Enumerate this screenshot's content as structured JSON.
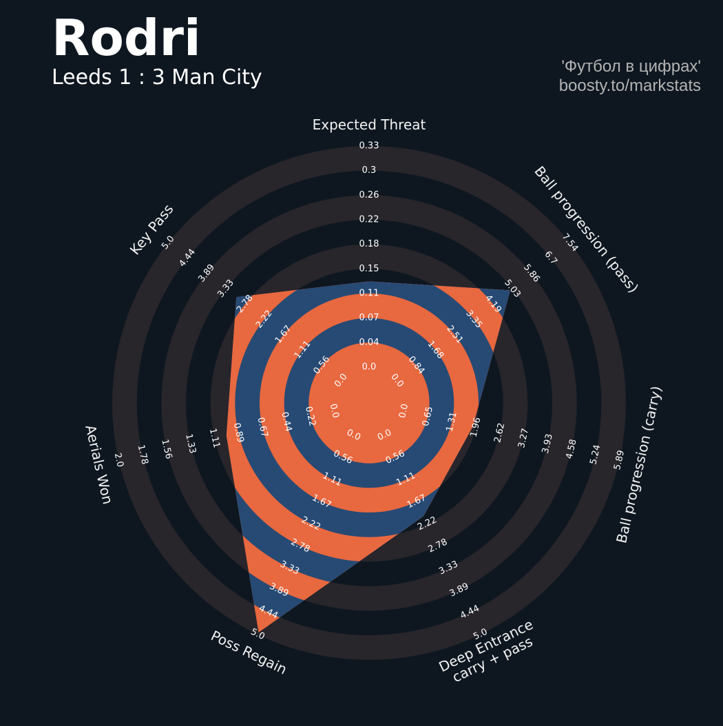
{
  "chart_data": {
    "type": "radar",
    "title": "Rodri",
    "subtitle": "Leeds 1 : 3 Man City",
    "credits": [
      "'Футбол в цифрах'",
      "boosty.to/markstats"
    ],
    "categories": [
      "Expected Threat",
      "Ball progression (pass)",
      "Ball progression (carry)",
      "Deep Entrance\ncarry + pass",
      "Poss Regain",
      "Aerials Won",
      "Key Pass"
    ],
    "values": [
      0.128,
      4.94,
      1.88,
      2.03,
      4.95,
      1.0,
      3.03
    ],
    "colors": {
      "ring": "#28252b",
      "background": "#0e1720",
      "ring_inside": "#e8683f",
      "background_inside": "#274a74"
    },
    "axes": [
      {
        "lim": [
          0,
          0.33
        ],
        "ticks": [
          {
            "value": 0,
            "label": "0.0"
          },
          {
            "value": 0.0367,
            "label": "0.04"
          },
          {
            "value": 0.0733,
            "label": "0.07"
          },
          {
            "value": 0.11,
            "label": "0.11"
          },
          {
            "value": 0.1467,
            "label": "0.15"
          },
          {
            "value": 0.1833,
            "label": "0.18"
          },
          {
            "value": 0.22,
            "label": "0.22"
          },
          {
            "value": 0.2567,
            "label": "0.26"
          },
          {
            "value": 0.2933,
            "label": "0.3"
          },
          {
            "value": 0.33,
            "label": "0.33"
          }
        ]
      },
      {
        "lim": [
          0,
          7.54
        ],
        "ticks": [
          {
            "value": 0,
            "label": "0.0"
          },
          {
            "value": 0.8378,
            "label": "0.84"
          },
          {
            "value": 1.6756,
            "label": "1.68"
          },
          {
            "value": 2.5133,
            "label": "2.51"
          },
          {
            "value": 3.3511,
            "label": "3.35"
          },
          {
            "value": 4.1889,
            "label": "4.19"
          },
          {
            "value": 5.0267,
            "label": "5.03"
          },
          {
            "value": 5.8644,
            "label": "5.86"
          },
          {
            "value": 6.7022,
            "label": "6.7"
          },
          {
            "value": 7.54,
            "label": "7.54"
          }
        ]
      },
      {
        "lim": [
          0,
          5.89
        ],
        "ticks": [
          {
            "value": 0,
            "label": "0.0"
          },
          {
            "value": 0.6544,
            "label": "0.65"
          },
          {
            "value": 1.3089,
            "label": "1.31"
          },
          {
            "value": 1.9633,
            "label": "1.96"
          },
          {
            "value": 2.6178,
            "label": "2.62"
          },
          {
            "value": 3.2722,
            "label": "3.27"
          },
          {
            "value": 3.9267,
            "label": "3.93"
          },
          {
            "value": 4.5811,
            "label": "4.58"
          },
          {
            "value": 5.2356,
            "label": "5.24"
          },
          {
            "value": 5.89,
            "label": "5.89"
          }
        ]
      },
      {
        "lim": [
          0,
          5
        ],
        "ticks": [
          {
            "value": 0,
            "label": "0.0"
          },
          {
            "value": 0.5556,
            "label": "0.56"
          },
          {
            "value": 1.1111,
            "label": "1.11"
          },
          {
            "value": 1.6667,
            "label": "1.67"
          },
          {
            "value": 2.2222,
            "label": "2.22"
          },
          {
            "value": 2.7778,
            "label": "2.78"
          },
          {
            "value": 3.3333,
            "label": "3.33"
          },
          {
            "value": 3.8889,
            "label": "3.89"
          },
          {
            "value": 4.4444,
            "label": "4.44"
          },
          {
            "value": 5,
            "label": "5.0"
          }
        ]
      },
      {
        "lim": [
          0,
          5
        ],
        "ticks": [
          {
            "value": 0,
            "label": "0.0"
          },
          {
            "value": 0.5556,
            "label": "0.56"
          },
          {
            "value": 1.1111,
            "label": "1.11"
          },
          {
            "value": 1.6667,
            "label": "1.67"
          },
          {
            "value": 2.2222,
            "label": "2.22"
          },
          {
            "value": 2.7778,
            "label": "2.78"
          },
          {
            "value": 3.3333,
            "label": "3.33"
          },
          {
            "value": 3.8889,
            "label": "3.89"
          },
          {
            "value": 4.4444,
            "label": "4.44"
          },
          {
            "value": 5,
            "label": "5.0"
          }
        ]
      },
      {
        "lim": [
          0,
          2
        ],
        "ticks": [
          {
            "value": 0,
            "label": "0.0"
          },
          {
            "value": 0.2222,
            "label": "0.22"
          },
          {
            "value": 0.4444,
            "label": "0.44"
          },
          {
            "value": 0.6667,
            "label": "0.67"
          },
          {
            "value": 0.8889,
            "label": "0.89"
          },
          {
            "value": 1.1111,
            "label": "1.11"
          },
          {
            "value": 1.3333,
            "label": "1.33"
          },
          {
            "value": 1.5556,
            "label": "1.56"
          },
          {
            "value": 1.7778,
            "label": "1.78"
          },
          {
            "value": 2,
            "label": "2.0"
          }
        ]
      },
      {
        "lim": [
          0,
          5
        ],
        "ticks": [
          {
            "value": 0,
            "label": "0.0"
          },
          {
            "value": 0.5556,
            "label": "0.56"
          },
          {
            "value": 1.1111,
            "label": "1.11"
          },
          {
            "value": 1.6667,
            "label": "1.67"
          },
          {
            "value": 2.2222,
            "label": "2.22"
          },
          {
            "value": 2.7778,
            "label": "2.78"
          },
          {
            "value": 3.3333,
            "label": "3.33"
          },
          {
            "value": 3.8889,
            "label": "3.89"
          },
          {
            "value": 4.4444,
            "label": "4.44"
          },
          {
            "value": 5,
            "label": "5.0"
          }
        ]
      }
    ]
  }
}
